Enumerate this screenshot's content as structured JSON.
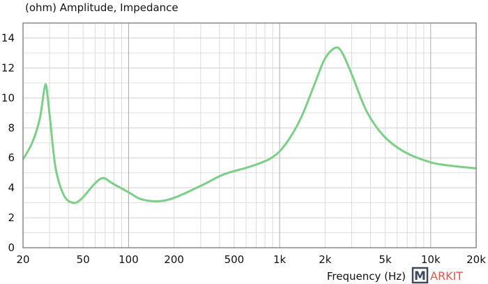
{
  "chart_data": {
    "type": "line",
    "title": "(ohm)  Amplitude, Impedance",
    "xlabel": "Frequency (Hz)",
    "ylabel": "(ohm)",
    "xscale": "log",
    "xlim": [
      20,
      20000
    ],
    "ylim": [
      0,
      15
    ],
    "grid": true,
    "xticks": [
      {
        "v": 20,
        "l": "20"
      },
      {
        "v": 50,
        "l": "50"
      },
      {
        "v": 100,
        "l": "100"
      },
      {
        "v": 200,
        "l": "200"
      },
      {
        "v": 500,
        "l": "500"
      },
      {
        "v": 1000,
        "l": "1k"
      },
      {
        "v": 2000,
        "l": "2k"
      },
      {
        "v": 5000,
        "l": "5k"
      },
      {
        "v": 10000,
        "l": "10k"
      },
      {
        "v": 20000,
        "l": "20k"
      }
    ],
    "yticks": [
      0,
      2,
      4,
      6,
      8,
      10,
      12,
      14
    ],
    "series": [
      {
        "color": "#7ccf86",
        "points": [
          [
            20,
            5.9
          ],
          [
            23,
            7.0
          ],
          [
            25.8,
            8.6
          ],
          [
            27.7,
            10.6
          ],
          [
            28.6,
            10.7
          ],
          [
            30.2,
            8.6
          ],
          [
            32.9,
            5.3
          ],
          [
            37.3,
            3.5
          ],
          [
            42.8,
            3.0
          ],
          [
            48.6,
            3.25
          ],
          [
            60,
            4.3
          ],
          [
            68,
            4.65
          ],
          [
            78,
            4.3
          ],
          [
            100,
            3.7
          ],
          [
            120,
            3.25
          ],
          [
            156,
            3.1
          ],
          [
            203,
            3.35
          ],
          [
            310,
            4.2
          ],
          [
            428,
            4.9
          ],
          [
            654,
            5.45
          ],
          [
            900,
            6.05
          ],
          [
            1110,
            7.0
          ],
          [
            1375,
            8.6
          ],
          [
            1700,
            10.9
          ],
          [
            1990,
            12.6
          ],
          [
            2340,
            13.35
          ],
          [
            2600,
            13.0
          ],
          [
            3050,
            11.4
          ],
          [
            3770,
            9.1
          ],
          [
            4900,
            7.45
          ],
          [
            6700,
            6.4
          ],
          [
            10000,
            5.7
          ],
          [
            14200,
            5.45
          ],
          [
            20000,
            5.3
          ]
        ]
      }
    ]
  },
  "watermark": {
    "text": "MARKIT",
    "m": "M",
    "rest": "ARKIT"
  }
}
